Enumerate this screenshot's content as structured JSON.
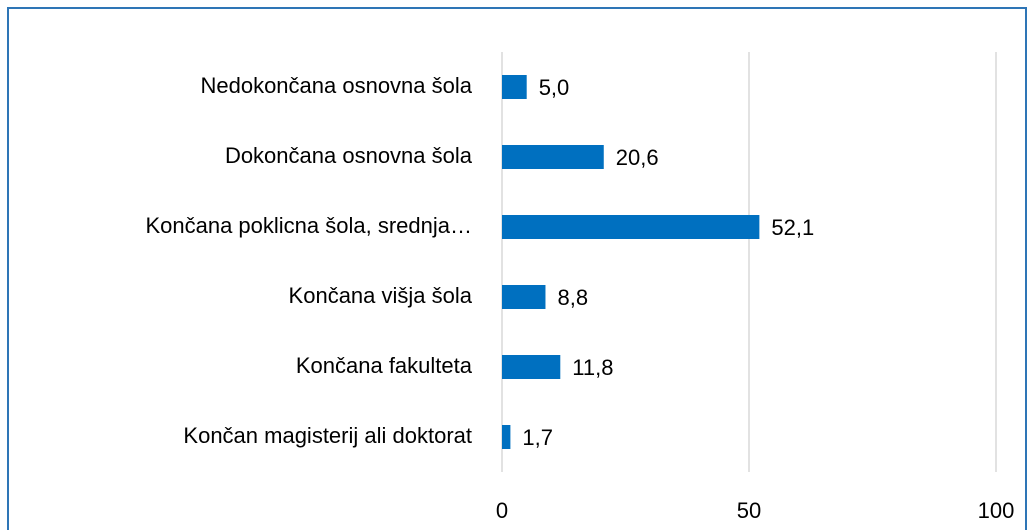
{
  "chart_data": {
    "type": "hbar",
    "categories": [
      "Nedokončana osnovna šola",
      "Dokončana osnovna šola",
      "Končana poklicna šola, srednja…",
      "Končana višja šola",
      "Končana fakulteta",
      "Končan magisterij ali doktorat"
    ],
    "values": [
      5.0,
      20.6,
      52.1,
      8.8,
      11.8,
      1.7
    ],
    "value_labels": [
      "5,0",
      "20,6",
      "52,1",
      "8,8",
      "11,8",
      "1,7"
    ],
    "color": "#0070c0",
    "xlim": [
      0,
      100
    ],
    "xticks": [
      0,
      50,
      100
    ],
    "grid": true
  }
}
